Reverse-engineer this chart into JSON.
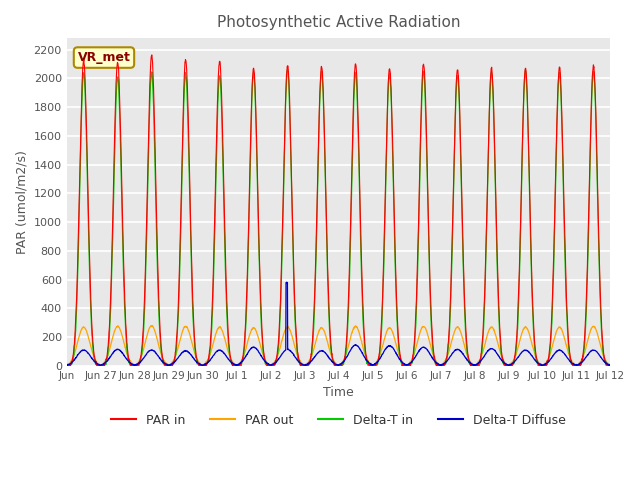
{
  "title": "Photosynthetic Active Radiation",
  "ylabel": "PAR (umol/m2/s)",
  "xlabel": "Time",
  "annotation": "VR_met",
  "ylim": [
    0,
    2280
  ],
  "yticks": [
    0,
    200,
    400,
    600,
    800,
    1000,
    1200,
    1400,
    1600,
    1800,
    2000,
    2200
  ],
  "xtick_labels": [
    "Jun",
    "Jun 27",
    "Jun 28",
    "Jun 29",
    "Jun 30",
    "Jul 1",
    "Jul 2",
    "Jul 3",
    "Jul 4",
    "Jul 5",
    "Jul 6",
    "Jul 7",
    "Jul 8",
    "Jul 9",
    "Jul 10",
    "Jul 11",
    "Jul 12"
  ],
  "n_days": 16,
  "colors": {
    "PAR_in": "#ff0000",
    "PAR_out": "#ffa500",
    "Delta_T_in": "#00cc00",
    "Delta_T_Diffuse": "#0000cc"
  },
  "legend_labels": [
    "PAR in",
    "PAR out",
    "Delta-T in",
    "Delta-T Diffuse"
  ],
  "background_color": "#e8e8e8",
  "grid_color": "#ffffff",
  "title_color": "#555555",
  "axis_label_color": "#555555",
  "annotation_bg": "#ffffcc",
  "annotation_border": "#aa8800",
  "par_in_peaks": [
    2120,
    2110,
    2160,
    2130,
    2120,
    2070,
    2090,
    2080,
    2100,
    2070,
    2100,
    2060,
    2070,
    2070,
    2080,
    2090
  ],
  "par_out_peaks": [
    270,
    275,
    280,
    275,
    270,
    265,
    270,
    265,
    275,
    265,
    275,
    270,
    270,
    270,
    270,
    275
  ],
  "dti_peaks": [
    2040,
    2010,
    2040,
    2030,
    2020,
    2040,
    2060,
    2050,
    2040,
    2030,
    2050,
    2020,
    2040,
    2050,
    2040,
    2050
  ],
  "dtd_peaks": [
    110,
    115,
    110,
    105,
    110,
    130,
    115,
    105,
    145,
    140,
    130,
    115,
    120,
    110,
    110,
    110
  ],
  "spike_day": 6,
  "spike_value": 580
}
